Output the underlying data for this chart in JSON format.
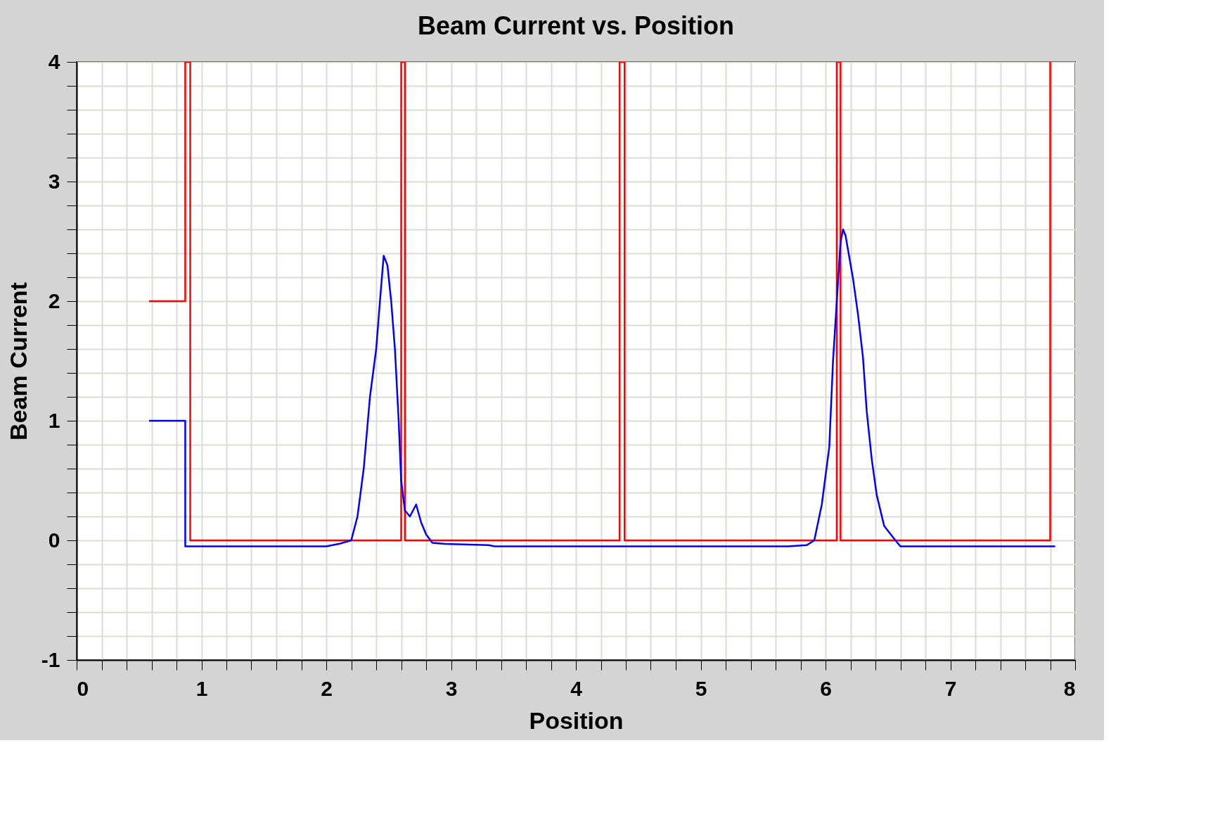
{
  "chart_data": {
    "type": "line",
    "title": "Beam Current vs. Position",
    "xlabel": "Position",
    "ylabel": "Beam Current",
    "xlim": [
      0,
      8
    ],
    "ylim": [
      -1,
      4
    ],
    "xticks": [
      0,
      {
        "value": 0.2,
        "label": null
      },
      {
        "value": 0.4,
        "label": null
      },
      {
        "value": 0.6,
        "label": null
      },
      {
        "value": 0.8,
        "label": null
      },
      1,
      {
        "value": 1.2,
        "label": null
      },
      {
        "value": 1.4,
        "label": null
      },
      {
        "value": 1.6,
        "label": null
      },
      {
        "value": 1.8,
        "label": null
      },
      2,
      {
        "value": 2.2,
        "label": null
      },
      {
        "value": 2.4,
        "label": null
      },
      {
        "value": 2.6,
        "label": null
      },
      {
        "value": 2.8,
        "label": null
      },
      3,
      {
        "value": 3.2,
        "label": null
      },
      {
        "value": 3.4,
        "label": null
      },
      {
        "value": 3.6,
        "label": null
      },
      {
        "value": 3.8,
        "label": null
      },
      4,
      {
        "value": 4.2,
        "label": null
      },
      {
        "value": 4.4,
        "label": null
      },
      {
        "value": 4.6,
        "label": null
      },
      {
        "value": 4.8,
        "label": null
      },
      5,
      {
        "value": 5.2,
        "label": null
      },
      {
        "value": 5.4,
        "label": null
      },
      {
        "value": 5.6,
        "label": null
      },
      {
        "value": 5.8,
        "label": null
      },
      6,
      {
        "value": 6.2,
        "label": null
      },
      {
        "value": 6.4,
        "label": null
      },
      {
        "value": 6.6,
        "label": null
      },
      {
        "value": 6.8,
        "label": null
      },
      7,
      {
        "value": 7.2,
        "label": null
      },
      {
        "value": 7.4,
        "label": null
      },
      {
        "value": 7.6,
        "label": null
      },
      {
        "value": 7.8,
        "label": null
      },
      8
    ],
    "yticks": [
      -1,
      {
        "value": -0.8,
        "label": null
      },
      {
        "value": -0.6,
        "label": null
      },
      {
        "value": -0.4,
        "label": null
      },
      {
        "value": -0.2,
        "label": null
      },
      0,
      {
        "value": 0.2,
        "label": null
      },
      {
        "value": 0.4,
        "label": null
      },
      {
        "value": 0.6,
        "label": null
      },
      {
        "value": 0.8,
        "label": null
      },
      1,
      {
        "value": 1.2,
        "label": null
      },
      {
        "value": 1.4,
        "label": null
      },
      {
        "value": 1.6,
        "label": null
      },
      {
        "value": 1.8,
        "label": null
      },
      2,
      {
        "value": 2.2,
        "label": null
      },
      {
        "value": 2.4,
        "label": null
      },
      {
        "value": 2.6,
        "label": null
      },
      {
        "value": 2.8,
        "label": null
      },
      3,
      {
        "value": 3.2,
        "label": null
      },
      {
        "value": 3.4,
        "label": null
      },
      {
        "value": 3.6,
        "label": null
      },
      {
        "value": 3.8,
        "label": null
      },
      4
    ],
    "grid": true,
    "legend": false,
    "marker": "none",
    "line_style": "solid",
    "series": [
      {
        "color": "#0000ff",
        "x": [
          0.58,
          0.87,
          0.87,
          2.0,
          2.1,
          2.2,
          2.25,
          2.3,
          2.35,
          2.4,
          2.43,
          2.46,
          2.49,
          2.52,
          2.55,
          2.58,
          2.6,
          2.63,
          2.67,
          2.72,
          2.76,
          2.8,
          2.85,
          2.95,
          3.3,
          3.35,
          5.7,
          5.85,
          5.91,
          5.97,
          6.03,
          6.06,
          6.12,
          6.14,
          6.16,
          6.22,
          6.26,
          6.3,
          6.33,
          6.37,
          6.41,
          6.47,
          6.56,
          6.6,
          7.84
        ],
        "values": [
          1,
          1,
          -0.05,
          -0.05,
          -0.03,
          0.0,
          0.2,
          0.6,
          1.2,
          1.6,
          2.0,
          2.38,
          2.3,
          2.0,
          1.6,
          1.0,
          0.5,
          0.25,
          0.2,
          0.3,
          0.15,
          0.05,
          -0.02,
          -0.03,
          -0.04,
          -0.05,
          -0.05,
          -0.04,
          0.0,
          0.3,
          0.78,
          1.5,
          2.49,
          2.6,
          2.55,
          2.19,
          1.89,
          1.53,
          1.08,
          0.68,
          0.38,
          0.12,
          0.0,
          -0.05,
          -0.05
        ]
      },
      {
        "color": "#ff0000",
        "x": [
          0.58,
          0.87,
          0.87,
          0.91,
          0.91,
          2.6,
          2.6,
          2.63,
          2.63,
          4.35,
          4.35,
          4.39,
          4.39,
          6.09,
          6.09,
          6.12,
          6.12,
          7.8,
          7.8
        ],
        "values": [
          2,
          2,
          4,
          4,
          0,
          0,
          4,
          4,
          0,
          0,
          4,
          4,
          0,
          0,
          4,
          4,
          0,
          0,
          4
        ]
      }
    ]
  }
}
